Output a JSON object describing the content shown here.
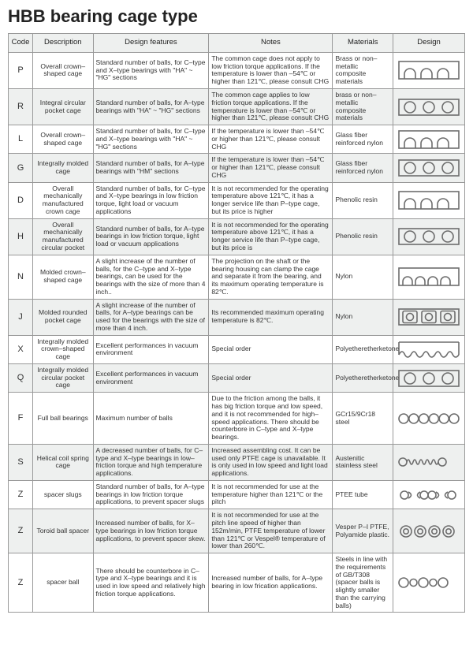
{
  "title": "HBB bearing cage type",
  "columns": [
    "Code",
    "Description",
    "Design features",
    "Notes",
    "Materials",
    "Design"
  ],
  "colors": {
    "header_bg": "#eef0ef",
    "row_alt_bg": "#eef0ef",
    "border": "#999999",
    "text": "#333333",
    "svg_stroke": "#6d6d6d",
    "svg_fill_none": "none"
  },
  "svg_style": {
    "stroke_width": 1.6,
    "stroke": "#6d6d6d",
    "width": 82,
    "height": 26
  },
  "rows": [
    {
      "code": "P",
      "description": "Overall crown–shaped cage",
      "features": "Standard number of balls, for C–type and X–type bearings with \"HA\" ~ \"HG\" sections",
      "notes": "The common cage does not apply to low friction torque applications. If the temperature is lower than –54℃ or higher than 121℃, please consult CHG",
      "materials": "Brass or non–metallic composite materials",
      "design": "crown_arch",
      "alt": false
    },
    {
      "code": "R",
      "description": "Integral circular pocket cage",
      "features": "Standard number of balls, for A–type bearings with \"HA\" ~ \"HG\" sections",
      "notes": "The common cage applies to low friction torque applications. If the temperature is lower than –54℃ or higher than 121℃, please consult CHG",
      "materials": "brass or non–metallic composite materials",
      "design": "circles_in_box",
      "alt": true
    },
    {
      "code": "L",
      "description": "Overall crown–shaped cage",
      "features": "Standard number of balls, for C–type and X–type bearings with \"HA\" ~ \"HG\" sections",
      "notes": "If the temperature is lower than –54℃ or higher than 121℃, please consult CHG",
      "materials": "Glass fiber reinforced nylon",
      "design": "crown_arch",
      "alt": false
    },
    {
      "code": "G",
      "description": "Integrally molded cage",
      "features": "Standard number of balls, for A–type bearings with \"HM\" sections",
      "notes": "If the temperature is lower than –54℃ or higher than 121℃, please consult CHG",
      "materials": "Glass fiber reinforced nylon",
      "design": "circles_in_box",
      "alt": true
    },
    {
      "code": "D",
      "description": "Overall mechanically manufactured crown cage",
      "features": "Standard number of balls, for C–type and X–type bearings in low friction torque, light load or vacuum applications",
      "notes": "It is not recommended for the operating temperature above 121℃, it has a longer service life than P–type cage, but its price is higher",
      "materials": "Phenolic resin",
      "design": "crown_arch",
      "alt": false
    },
    {
      "code": "H",
      "description": "Overall mechanically manufactured circular pocket",
      "features": "Standard number of balls, for A–type bearings in low friction torque, light load or vacuum applications",
      "notes": "It is not recommended for the operating temperature above 121℃, it has a longer service life than P–type cage, but its price is",
      "materials": "Phenolic resin",
      "design": "circles_in_box",
      "alt": true
    },
    {
      "code": "N",
      "description": "Molded crown–shaped cage",
      "features": "A slight increase of the number of balls, for the C–type and X–type bearings, can be used for the bearings with the size of more than 4 inch..",
      "notes": "The projection on the shaft or the bearing housing can clamp the cage and separate it from the bearing, and its maximum operating temperature is 82℃.",
      "materials": "Nylon",
      "design": "crown_arch_wide",
      "alt": false
    },
    {
      "code": "J",
      "description": "Molded rounded pocket cage",
      "features": "A slight increase of the number of balls, for A–type bearings can be used for the bearings with the size of more than 4 inch.",
      "notes": "Its recommended maximum operating temperature is 82℃.",
      "materials": "Nylon",
      "design": "squares_in_box",
      "alt": true
    },
    {
      "code": "X",
      "description": "Integrally molded crown–shaped cage",
      "features": "Excellent performances in vacuum environment",
      "notes": "Special order",
      "materials": "Polyetheretherketone",
      "design": "crown_wavy",
      "alt": false
    },
    {
      "code": "Q",
      "description": "Integrally molded circular pocket cage",
      "features": "Excellent performances in vacuum environment",
      "notes": "Special order",
      "materials": "Polyetheretherketone",
      "design": "circles_in_box",
      "alt": true
    },
    {
      "code": "F",
      "description": "Full ball bearings",
      "features": "Maximum number of balls",
      "notes": "Due to the friction among the balls, it has big friction torque and low speed, and it is not recommended for high–speed applications. There should be counterbore in C–type and X–type bearings.",
      "materials": "GCr15/9Cr18 steel",
      "design": "circles_row_6",
      "alt": false
    },
    {
      "code": "S",
      "description": "Helical coil spring cage",
      "features": "A decreased number of balls, for C–type and X–type bearings in low–friction torque and high temperature applications.",
      "notes": "Increased assembling cost. It can be used only PTFE cage is unavailable. It is only used in low speed and light load applications.",
      "materials": "Austenitic stainless steel",
      "design": "springs",
      "alt": true
    },
    {
      "code": "Z",
      "description": "spacer slugs",
      "features": "Standard number of balls, for A–type bearings in low friction torque applications, to prevent spacer slugs",
      "notes": "It is not recommended for use at the temperature higher than 121℃ or the pitch",
      "materials": "PTEE tube",
      "design": "dumbbells",
      "alt": false
    },
    {
      "code": "Z",
      "description": "Toroid ball spacer",
      "features": "Increased number of balls, for X–type bearings in low friction torque applications, to prevent spacer skew.",
      "notes": "It is not recommended for use at the pitch line speed of higher than 152m/min, PTFE temperature of lower than 121℃ or Vespel® temperature of lower than 260℃.",
      "materials": "Vesper P–I PTFE, Polyamide plastic.",
      "design": "circle_pairs",
      "alt": true
    },
    {
      "code": "Z",
      "description": "spacer ball",
      "features": "There should be counterbore in C–type and X–type bearings and it is used in low speed and relatively high friction torque applications.",
      "notes": "Increased number of balls, for A–type bearing in low frication applications.",
      "materials": "Steels in line with the requirements of GB/T308 (spacer balls is slightly smaller than the carrying balls)",
      "design": "circles_alt_5",
      "alt": false
    }
  ]
}
